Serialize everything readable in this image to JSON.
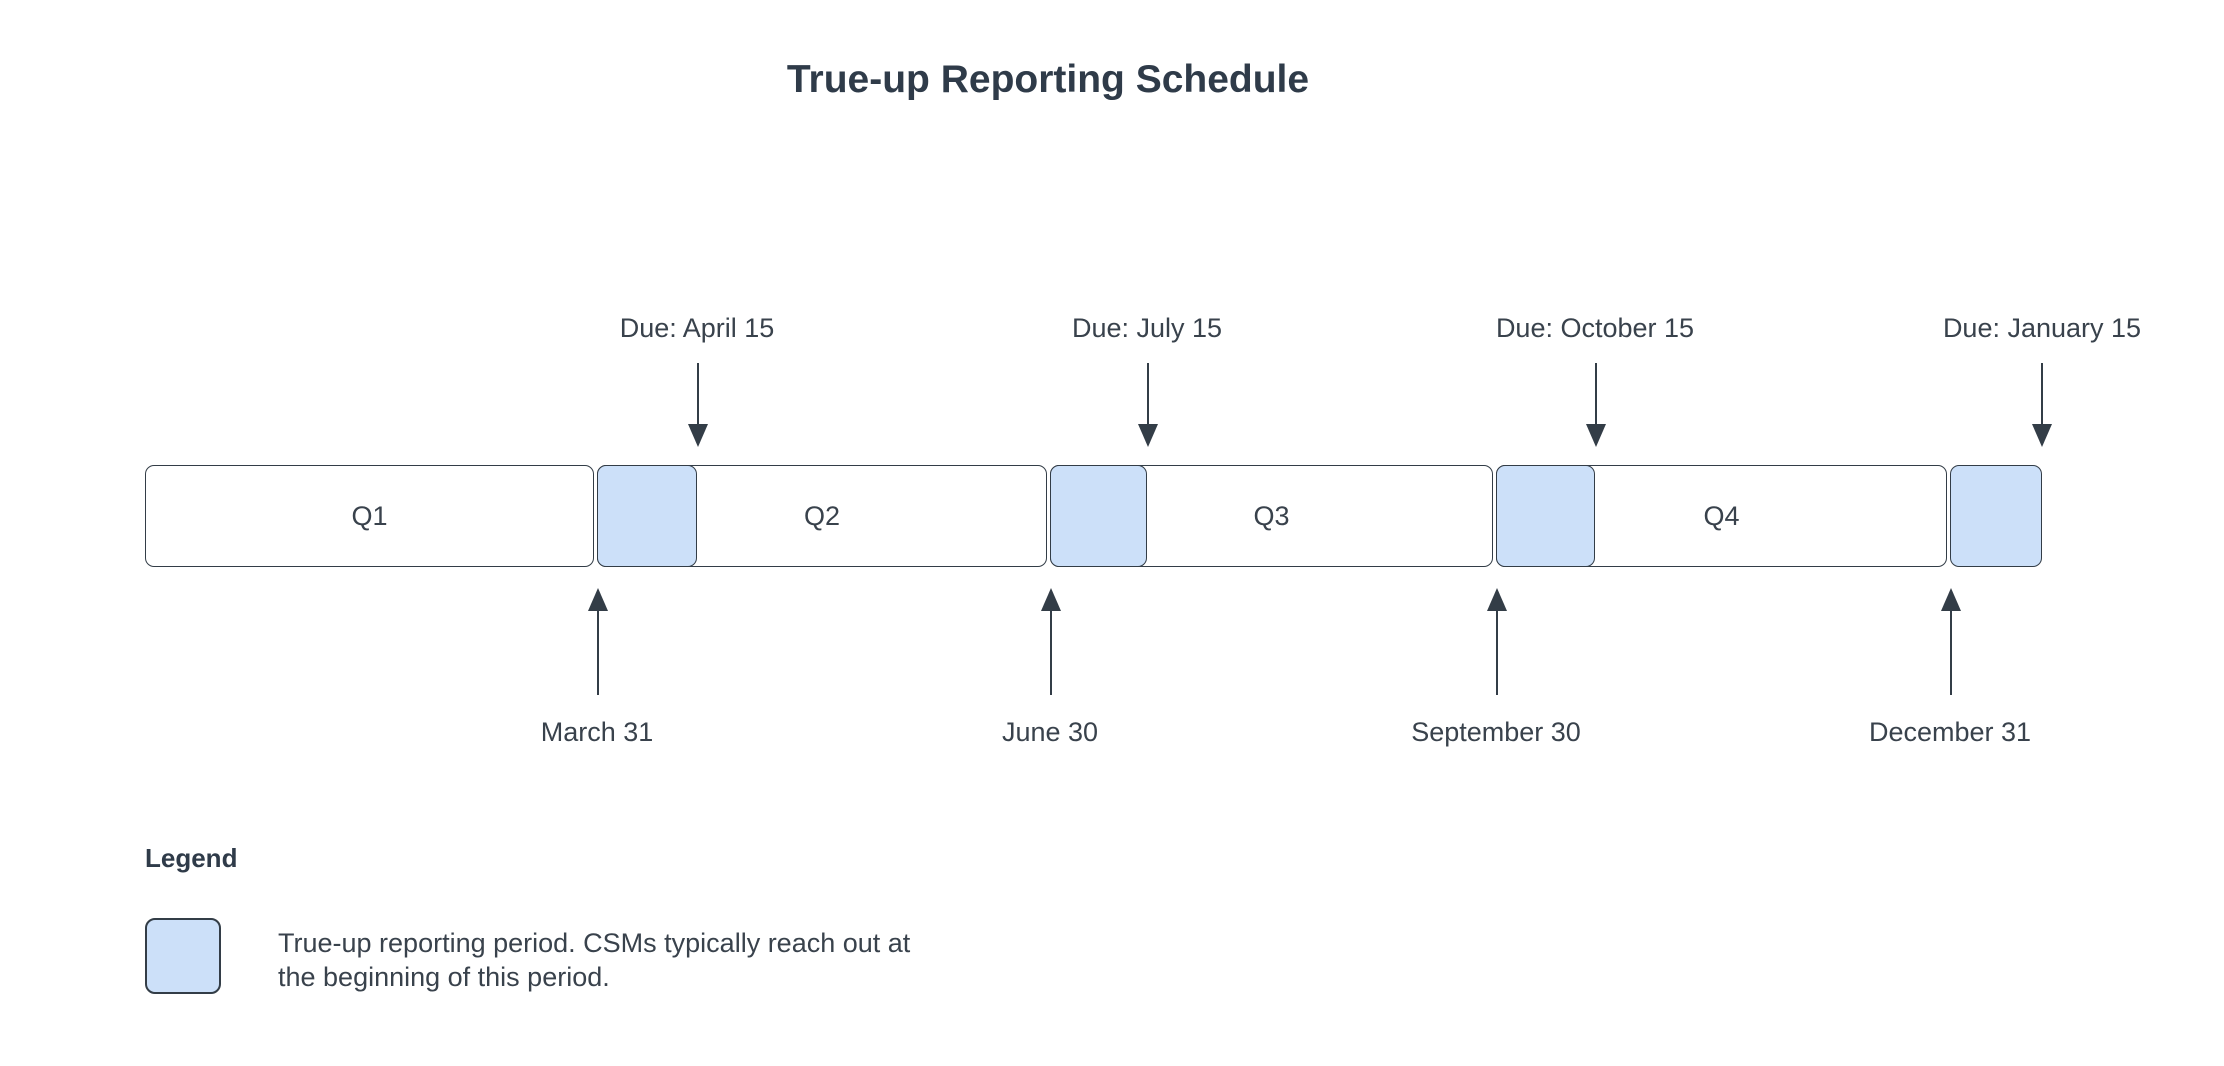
{
  "title": "True-up Reporting Schedule",
  "quarters": [
    {
      "label": "Q1",
      "end_date": "March 31",
      "due_date": "Due: April 15"
    },
    {
      "label": "Q2",
      "end_date": "June 30",
      "due_date": "Due: July 15"
    },
    {
      "label": "Q3",
      "end_date": "September 30",
      "due_date": "Due: October 15"
    },
    {
      "label": "Q4",
      "end_date": "December 31",
      "due_date": "Due: January 15"
    }
  ],
  "legend": {
    "heading": "Legend",
    "description_line1": "True-up reporting period. CSMs typically reach out at",
    "description_line2": "the beginning of this period."
  },
  "colors": {
    "trueup_period_fill": "#cce0f9",
    "stroke": "#333d47",
    "text": "#39424c",
    "background": "#ffffff"
  }
}
